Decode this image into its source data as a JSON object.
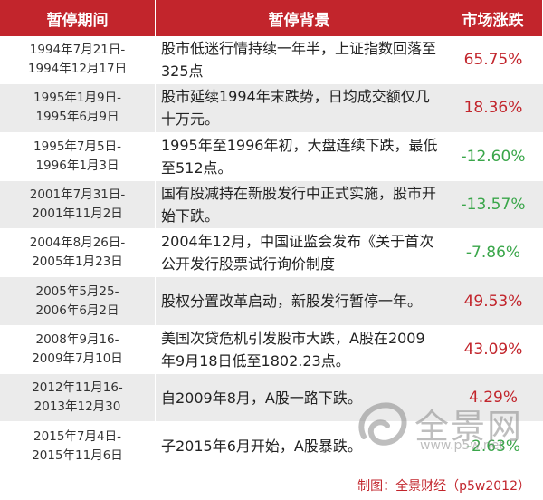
{
  "header": {
    "col_period": "暂停期间",
    "col_background": "暂停背景",
    "col_change": "市场涨跌"
  },
  "rows": [
    {
      "period": "1994年7月21日-\n1994年12月17日",
      "background": "股市低迷行情持续一年半，上证指数回落至325点",
      "change": "65.75%",
      "direction": "up"
    },
    {
      "period": "1995年1月9日-\n1995年6月9日",
      "background": "股市延续1994年末跌势，日均成交额仅几十万元。",
      "change": "18.36%",
      "direction": "up"
    },
    {
      "period": "1995年7月5日-\n1996年1月3日",
      "background": "1995年至1996年初，大盘连续下跌，最低至512点。",
      "change": "-12.60%",
      "direction": "down"
    },
    {
      "period": "2001年7月31日-\n2001年11月2日",
      "background": "国有股减持在新股发行中正式实施，股市开始下跌。",
      "change": "-13.57%",
      "direction": "down"
    },
    {
      "period": "2004年8月26日-\n2005年1月23日",
      "background": "2004年12月，中国证监会发布《关于首次公开发行股票试行询价制度",
      "change": "-7.86%",
      "direction": "down"
    },
    {
      "period": "2005年5月25-\n2006年6月2日",
      "background": "股权分置改革启动，新股发行暂停一年。",
      "change": "49.53%",
      "direction": "up"
    },
    {
      "period": "2008年9月16-\n2009年7月10日",
      "background": "美国次贷危机引发股市大跌，A股在2009年9月18日低至1802.23点。",
      "change": "43.09%",
      "direction": "up"
    },
    {
      "period": "2012年11月16-\n2013年12月30",
      "background": "自2009年8月，A股一路下跌。",
      "change": "4.29%",
      "direction": "up"
    },
    {
      "period": "2015年7月4日-\n2015年11月6日",
      "background": "子2015年6月开始，A股暴跌。",
      "change": "-2.63%",
      "direction": "down"
    }
  ],
  "credit": "制图：全景财经（p5w2012）",
  "watermark": {
    "text": "全景网",
    "url": "www.p5w.net"
  },
  "colors": {
    "header_bg": "#c2252c",
    "positive": "#c2252c",
    "negative": "#3aa64a",
    "stripe": "#ebebeb"
  }
}
